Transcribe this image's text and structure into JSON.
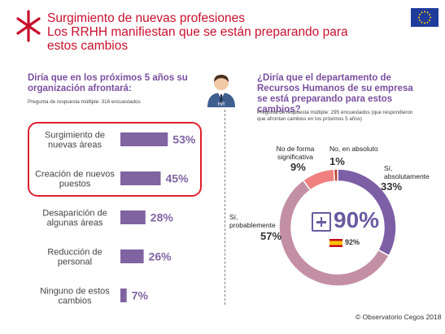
{
  "header": {
    "title_line1": "Surgimiento de nuevas profesiones",
    "title_line2": "Los RRHH manifiestan que se están preparando para estos cambios"
  },
  "left_panel": {
    "question": "Diría que en los próximos 5 años su organización afrontará:",
    "note": "Pregunta de respuesta múltiple: 316 encuestados"
  },
  "right_panel": {
    "question": "¿Diría que el departamento de Recursos Humanos de su empresa se está preparando para estos cambios?",
    "note": "Pregunta de respuesta múltiple: 295 encuestados (que respondieron que afrontan cambios en los próximos 5 años)",
    "total": "90%",
    "spain_total": "92%"
  },
  "hr_icon_label": "HR",
  "footer": "© Observatorio Cegos 2018",
  "colors": {
    "title": "#c8102e",
    "purple": "#7a4f9e",
    "bar": "#8064a2",
    "highlight": "#e0202e",
    "donut_main": "#c38fa4",
    "donut_abs": "#7d5fa6",
    "donut_no_sig": "#f08080",
    "donut_no": "#c0392b"
  },
  "chart_data": [
    {
      "type": "bar",
      "orientation": "horizontal",
      "categories": [
        "Surgimiento de nuevas áreas",
        "Creación de nuevos puestos",
        "Desaparición de algunas áreas",
        "Reducción de personal",
        "Ninguno de estos cambios"
      ],
      "values": [
        53,
        45,
        28,
        26,
        7
      ],
      "value_labels": [
        "53%",
        "45%",
        "28%",
        "26%",
        "7%"
      ],
      "highlighted": [
        0,
        1
      ]
    },
    {
      "type": "pie",
      "donut": true,
      "categories": [
        "Sí, absolutamente",
        "Sí, probablemente",
        "No de forma significativa",
        "No, en absoluto"
      ],
      "values": [
        33,
        57,
        9,
        1
      ],
      "value_labels": [
        "33%",
        "57%",
        "9%",
        "1%"
      ]
    }
  ]
}
